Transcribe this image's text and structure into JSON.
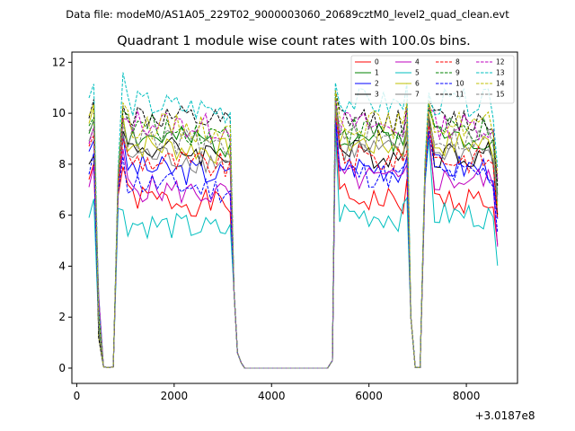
{
  "header": {
    "data_file_label": "Data file: modeM0/AS1A05_229T02_9000003060_20689cztM0_level2_quad_clean.evt"
  },
  "chart_data": {
    "type": "line",
    "title": "Quadrant 1 module wise count rates with 100.0s bins.",
    "xlabel": "",
    "ylabel": "",
    "x_offset_label": "+3.0187e8",
    "xlim": [
      -100,
      9050
    ],
    "ylim": [
      -0.6,
      12.4
    ],
    "x_ticks": [
      0,
      2000,
      4000,
      6000,
      8000
    ],
    "x_tick_labels": [
      "0",
      "2000",
      "4000",
      "6000",
      "8000"
    ],
    "y_ticks": [
      0,
      2,
      4,
      6,
      8,
      10,
      12
    ],
    "y_tick_labels": [
      "0",
      "2",
      "4",
      "6",
      "8",
      "10",
      "12"
    ],
    "legend_position": "top-right",
    "series": [
      {
        "name": "0",
        "color": "#ff0000",
        "style": "solid",
        "base": [
          7.4,
          7.9,
          6.7,
          9.7,
          6.7,
          6.5
        ]
      },
      {
        "name": "1",
        "color": "#008000",
        "style": "solid",
        "base": [
          9.2,
          9.8,
          9.1,
          10.6,
          9.2,
          8.8
        ]
      },
      {
        "name": "2",
        "color": "#0000ff",
        "style": "solid",
        "base": [
          8.5,
          9.1,
          7.9,
          10.0,
          8.0,
          7.4
        ]
      },
      {
        "name": "3",
        "color": "#000000",
        "style": "solid",
        "base": [
          8.0,
          9.3,
          8.7,
          10.3,
          8.5,
          7.9
        ]
      },
      {
        "name": "4",
        "color": "#bf00bf",
        "style": "solid",
        "base": [
          7.1,
          8.6,
          7.1,
          9.5,
          7.5,
          7.0
        ]
      },
      {
        "name": "5",
        "color": "#00bfbf",
        "style": "solid",
        "base": [
          5.9,
          6.2,
          5.7,
          9.4,
          6.1,
          5.8
        ]
      },
      {
        "name": "6",
        "color": "#bfbf00",
        "style": "solid",
        "base": [
          9.6,
          9.9,
          8.8,
          10.4,
          8.9,
          8.5
        ]
      },
      {
        "name": "7",
        "color": "#808080",
        "style": "solid",
        "base": [
          8.9,
          9.2,
          8.4,
          10.0,
          8.6,
          8.2
        ]
      },
      {
        "name": "8",
        "color": "#ff0000",
        "style": "dashed",
        "base": [
          8.7,
          9.0,
          8.2,
          9.9,
          8.3,
          7.9
        ]
      },
      {
        "name": "9",
        "color": "#008000",
        "style": "dashed",
        "base": [
          9.5,
          10.1,
          9.5,
          10.8,
          9.4,
          9.0
        ]
      },
      {
        "name": "10",
        "color": "#0000ff",
        "style": "dashed",
        "base": [
          7.6,
          8.3,
          7.3,
          9.7,
          7.7,
          7.2
        ]
      },
      {
        "name": "11",
        "color": "#000000",
        "style": "dashed",
        "base": [
          9.8,
          10.3,
          9.9,
          10.9,
          9.8,
          9.4
        ]
      },
      {
        "name": "12",
        "color": "#bf00bf",
        "style": "dashed",
        "base": [
          8.8,
          9.8,
          9.7,
          10.6,
          9.6,
          9.2
        ]
      },
      {
        "name": "13",
        "color": "#00bfbf",
        "style": "dashed",
        "base": [
          10.6,
          11.6,
          10.4,
          11.2,
          10.5,
          10.0
        ]
      },
      {
        "name": "14",
        "color": "#bfbf00",
        "style": "dashed",
        "base": [
          9.9,
          10.4,
          9.6,
          10.9,
          9.7,
          9.3
        ]
      },
      {
        "name": "15",
        "color": "#808080",
        "style": "dashed",
        "base": [
          9.3,
          9.6,
          9.0,
          10.3,
          9.1,
          8.7
        ]
      }
    ]
  }
}
